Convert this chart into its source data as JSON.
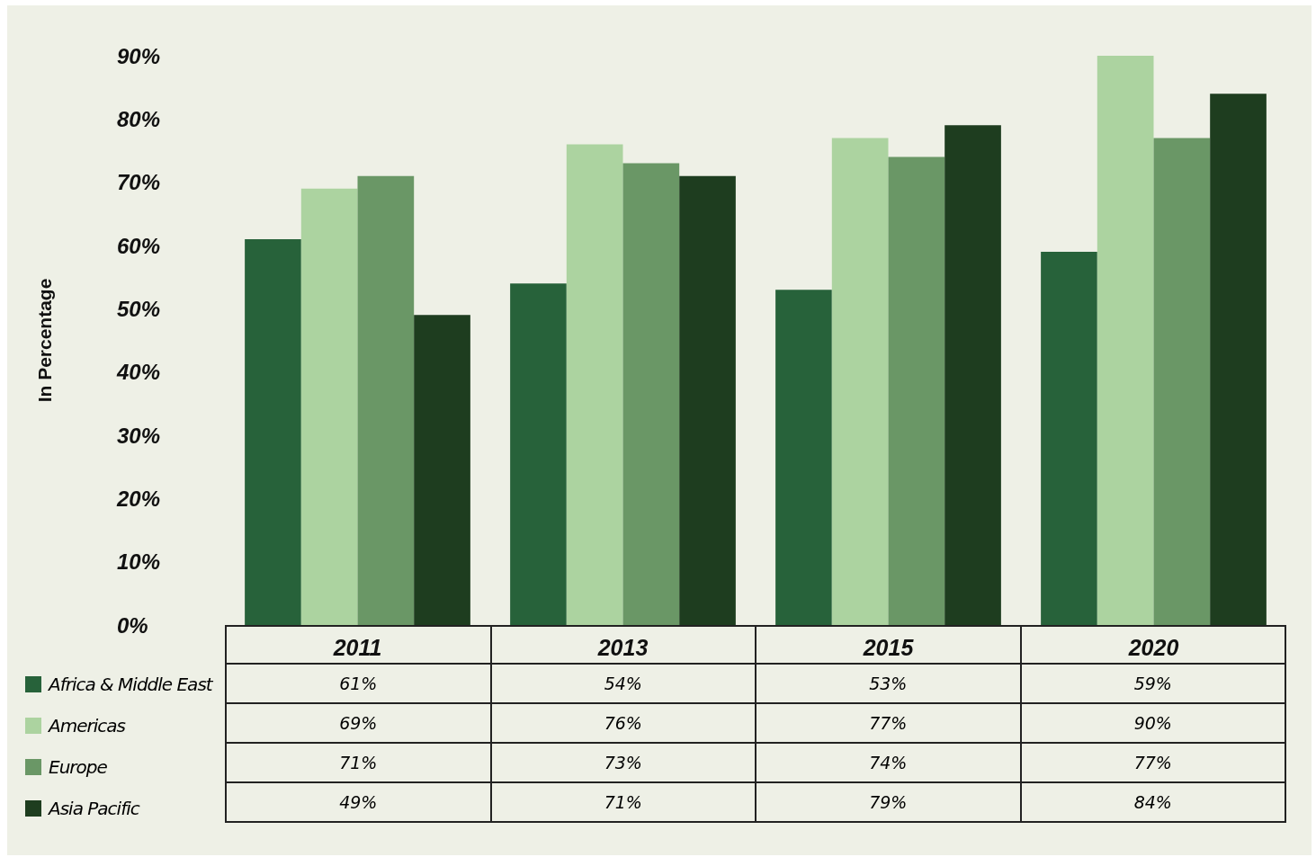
{
  "chart_data": {
    "type": "bar",
    "ylabel": "In Percentage",
    "categories": [
      "2011",
      "2013",
      "2015",
      "2020"
    ],
    "series": [
      {
        "name": "Africa & Middle East",
        "color": "#27623a",
        "values": [
          61,
          54,
          53,
          59
        ],
        "value_labels": [
          "61%",
          "54%",
          "53%",
          "59%"
        ]
      },
      {
        "name": "Americas",
        "color": "#acd3a0",
        "values": [
          69,
          76,
          77,
          90
        ],
        "value_labels": [
          "69%",
          "76%",
          "77%",
          "90%"
        ]
      },
      {
        "name": "Europe",
        "color": "#6a9766",
        "values": [
          71,
          73,
          74,
          77
        ],
        "value_labels": [
          "71%",
          "73%",
          "74%",
          "77%"
        ]
      },
      {
        "name": "Asia Pacific",
        "color": "#1e3d1f",
        "values": [
          49,
          71,
          79,
          84
        ],
        "value_labels": [
          "49%",
          "71%",
          "79%",
          "84%"
        ]
      }
    ],
    "ylim": [
      0,
      90
    ],
    "yticks": [
      {
        "value": 0,
        "label": "0%"
      },
      {
        "value": 10,
        "label": "10%"
      },
      {
        "value": 20,
        "label": "20%"
      },
      {
        "value": 30,
        "label": "30%"
      },
      {
        "value": 40,
        "label": "40%"
      },
      {
        "value": 50,
        "label": "50%"
      },
      {
        "value": 60,
        "label": "60%"
      },
      {
        "value": 70,
        "label": "70%"
      },
      {
        "value": 80,
        "label": "80%"
      },
      {
        "value": 90,
        "label": "90%"
      }
    ],
    "grid": false,
    "legend": "bottom left"
  }
}
